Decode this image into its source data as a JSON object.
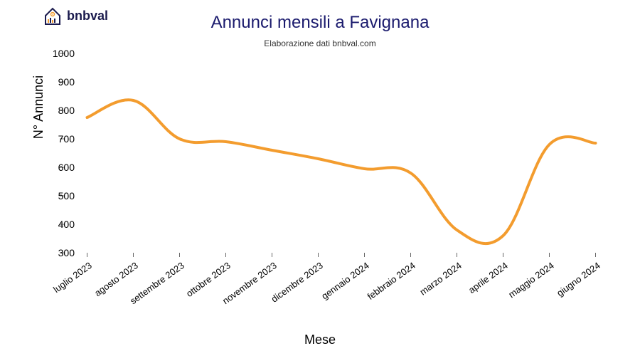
{
  "logo": {
    "text": "bnbval"
  },
  "chart": {
    "type": "line",
    "title": "Annunci mensili a Favignana",
    "subtitle": "Elaborazione dati bnbval.com",
    "xlabel": "Mese",
    "ylabel": "N° Annunci",
    "ylim": [
      300,
      1000
    ],
    "ytick_step": 100,
    "yticks": [
      300,
      400,
      500,
      600,
      700,
      800,
      900,
      1000
    ],
    "categories": [
      "luglio 2023",
      "agosto 2023",
      "settembre 2023",
      "ottobre 2023",
      "novembre 2023",
      "dicembre 2023",
      "gennaio 2024",
      "febbraio 2024",
      "marzo 2024",
      "aprile 2024",
      "maggio 2024",
      "giugno 2024"
    ],
    "values": [
      775,
      835,
      700,
      690,
      660,
      630,
      595,
      580,
      380,
      360,
      680,
      685
    ],
    "line_color": "#f39c2e",
    "line_width": 4,
    "tick_color": "#666666",
    "grid_color": "#e0e0e0",
    "background_color": "#ffffff",
    "title_color": "#1a1a6d",
    "title_fontsize": 24,
    "subtitle_fontsize": 12,
    "axis_label_fontsize": 18,
    "tick_fontsize": 14,
    "xtick_rotation": -36,
    "smooth": true
  }
}
